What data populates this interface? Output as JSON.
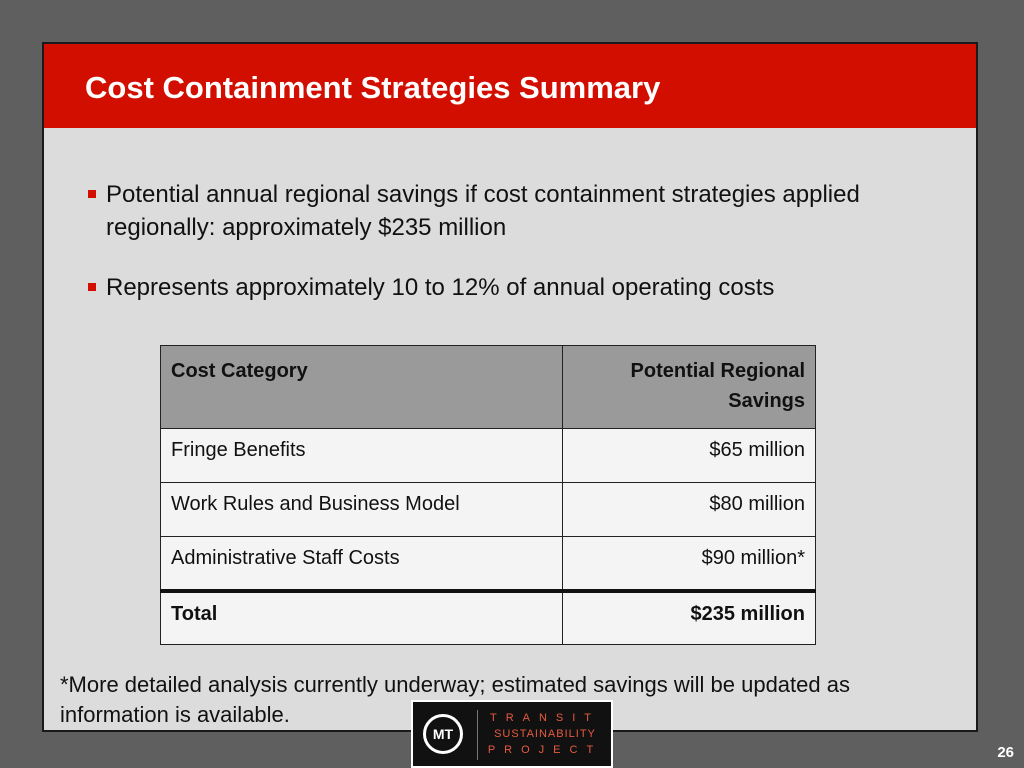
{
  "slide": {
    "title": "Cost Containment Strategies Summary",
    "bullets": [
      "Potential annual regional savings if cost containment strategies applied regionally: approximately $235 million",
      "Represents approximately 10 to 12% of annual operating costs"
    ],
    "table": {
      "headers": [
        "Cost Category",
        "Potential Regional Savings"
      ],
      "rows": [
        [
          "Fringe Benefits",
          "$65 million"
        ],
        [
          "Work Rules and Business Model",
          "$80 million"
        ],
        [
          "Administrative Staff Costs",
          "$90 million*"
        ]
      ],
      "total": [
        "Total",
        "$235 million"
      ]
    },
    "footnote": "*More detailed analysis currently underway; estimated savings will be updated as information is available.",
    "page_number": "26"
  },
  "logo": {
    "mark": "MT",
    "line1": "TRANSIT",
    "line2": "SUSTAINABILITY",
    "line3": "PROJECT"
  },
  "colors": {
    "accent": "#d20e00",
    "background": "#5f5f5f",
    "slide_bg": "#dcdcdc",
    "table_header": "#9a9a9a"
  }
}
